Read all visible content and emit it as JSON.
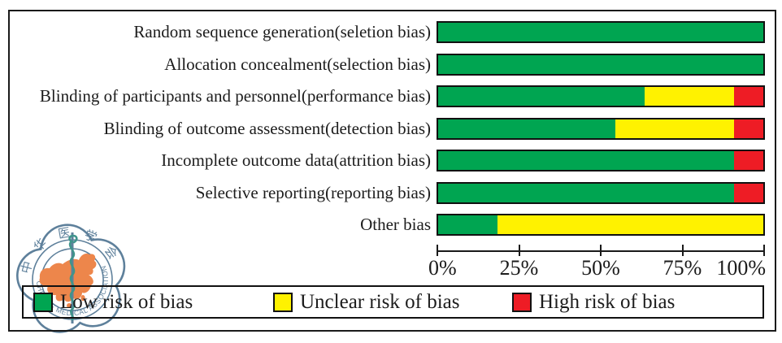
{
  "chart_data": {
    "type": "bar",
    "orientation": "horizontal",
    "stacked": true,
    "unit": "percent",
    "title": "",
    "xlabel": "",
    "ylabel": "",
    "x_range": [
      0,
      100
    ],
    "grid": false,
    "legend_position": "bottom",
    "categories": [
      "Random sequence generation(seletion bias)",
      "Allocation concealment(selection bias)",
      "Blinding of participants and personnel(performance bias)",
      "Blinding of outcome assessment(detection bias)",
      "Incomplete outcome data(attrition bias)",
      "Selective reporting(reporting bias)",
      "Other bias"
    ],
    "series": [
      {
        "name": "Low risk of bias",
        "color": "#00A551",
        "values": [
          100,
          100,
          63.6,
          54.5,
          90.9,
          90.9,
          18.2
        ]
      },
      {
        "name": "Unclear risk of bias",
        "color": "#FFF200",
        "values": [
          0,
          0,
          27.3,
          36.4,
          0,
          0,
          81.8
        ]
      },
      {
        "name": "High risk of bias",
        "color": "#EE1C25",
        "values": [
          0,
          0,
          9.1,
          9.1,
          9.1,
          9.1,
          0
        ]
      }
    ],
    "x_ticks": [
      "0%",
      "25%",
      "50%",
      "75%",
      "100%"
    ]
  },
  "legend": {
    "items": [
      {
        "label": "Low risk of bias",
        "color": "#00A551"
      },
      {
        "label": "Unclear risk of bias",
        "color": "#FFF200"
      },
      {
        "label": "High risk of bias",
        "color": "#EE1C25"
      }
    ]
  },
  "watermark": {
    "name": "chinese-medical-association-logo",
    "chinese_text": "中华医学会",
    "english_text": "CHINESE MEDICAL ASSOCIATION",
    "colors": {
      "ring": "#517693",
      "map": "#EC7C3C",
      "snake": "#2F8C82"
    }
  },
  "colors": {
    "frame": "#1a1a1a",
    "bar_border": "#111111",
    "low": "#00A551",
    "unclear": "#FFF200",
    "high": "#EE1C25"
  }
}
